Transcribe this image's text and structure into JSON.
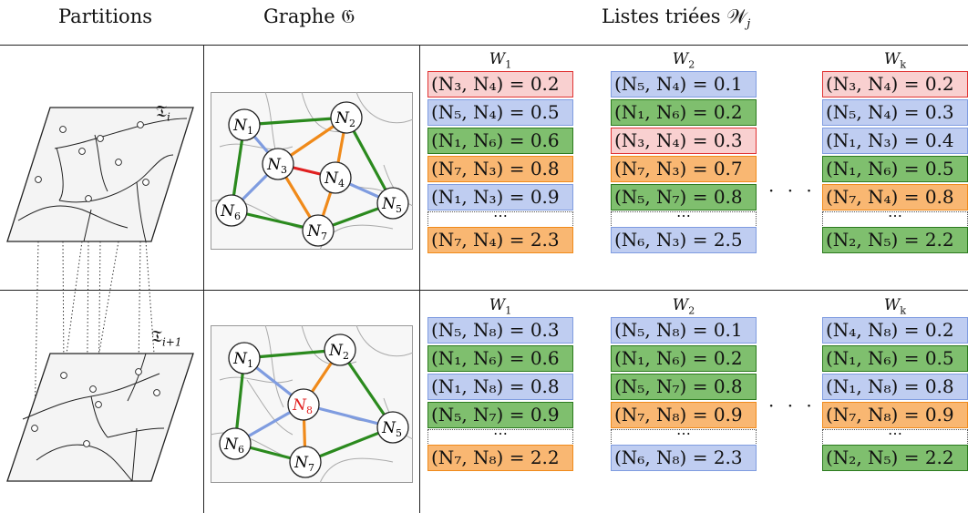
{
  "headers": {
    "partitions": "Partitions",
    "graph": "Graphe 𝔊",
    "lists": "Listes triées 𝒲"
  },
  "partition_labels": {
    "top": "𝔗",
    "bottom": "𝔗"
  },
  "graph_nodes": {
    "top": [
      "N",
      "N",
      "N",
      "N",
      "N",
      "N",
      "N"
    ],
    "bottom": [
      "N",
      "N",
      "N",
      "N",
      "N",
      "N",
      "N"
    ]
  },
  "lists": [
    {
      "header": "W",
      "sub": "1",
      "rows": [
        {
          "label": "(N₃, N₄) = 0.2",
          "color": "red"
        },
        {
          "label": "(N₅, N₄) = 0.5",
          "color": "blue"
        },
        {
          "label": "(N₁, N₆) = 0.6",
          "color": "green"
        },
        {
          "label": "(N₇, N₃) = 0.8",
          "color": "orange"
        },
        {
          "label": "(N₁, N₃) = 0.9",
          "color": "blue"
        }
      ],
      "ellipsis": "⋯",
      "last": {
        "label": "(N₇, N₄) = 2.3",
        "color": "orange"
      }
    },
    {
      "header": "W",
      "sub": "2",
      "rows": [
        {
          "label": "(N₅, N₄) = 0.1",
          "color": "blue"
        },
        {
          "label": "(N₁, N₆) = 0.2",
          "color": "green"
        },
        {
          "label": "(N₃, N₄) = 0.3",
          "color": "red"
        },
        {
          "label": "(N₇, N₃) = 0.7",
          "color": "orange"
        },
        {
          "label": "(N₅, N₇) = 0.8",
          "color": "green"
        }
      ],
      "ellipsis": "⋯",
      "last": {
        "label": "(N₆, N₃) = 2.5",
        "color": "blue"
      }
    },
    {
      "header": "W",
      "sub": "k",
      "rows": [
        {
          "label": "(N₃, N₄) = 0.2",
          "color": "red"
        },
        {
          "label": "(N₅, N₄) = 0.3",
          "color": "blue"
        },
        {
          "label": "(N₁, N₃) = 0.4",
          "color": "blue"
        },
        {
          "label": "(N₁, N₆) = 0.5",
          "color": "green"
        },
        {
          "label": "(N₇, N₄) = 0.8",
          "color": "orange"
        }
      ],
      "ellipsis": "⋯",
      "last": {
        "label": "(N₂, N₅) = 2.2",
        "color": "green"
      }
    },
    {
      "header": "W",
      "sub": "1",
      "rows": [
        {
          "label": "(N₅, N₈) = 0.3",
          "color": "blue"
        },
        {
          "label": "(N₁, N₆) = 0.6",
          "color": "green"
        },
        {
          "label": "(N₁, N₈) = 0.8",
          "color": "blue"
        },
        {
          "label": "(N₅, N₇) = 0.9",
          "color": "green"
        }
      ],
      "ellipsis": "⋯",
      "last": {
        "label": "(N₇, N₈) = 2.2",
        "color": "orange"
      }
    },
    {
      "header": "W",
      "sub": "2",
      "rows": [
        {
          "label": "(N₅, N₈) = 0.1",
          "color": "blue"
        },
        {
          "label": "(N₁, N₆) = 0.2",
          "color": "green"
        },
        {
          "label": "(N₅, N₇) = 0.8",
          "color": "green"
        },
        {
          "label": "(N₇, N₈) = 0.9",
          "color": "orange"
        }
      ],
      "ellipsis": "⋯",
      "last": {
        "label": "(N₆, N₈) = 2.3",
        "color": "blue"
      }
    },
    {
      "header": "W",
      "sub": "k",
      "rows": [
        {
          "label": "(N₄, N₈) = 0.2",
          "color": "blue"
        },
        {
          "label": "(N₁, N₆) = 0.5",
          "color": "green"
        },
        {
          "label": "(N₁, N₈) = 0.8",
          "color": "blue"
        },
        {
          "label": "(N₇, N₈) = 0.9",
          "color": "orange"
        }
      ],
      "ellipsis": "⋯",
      "last": {
        "label": "(N₂, N₅) = 2.2",
        "color": "green"
      }
    }
  ],
  "between_dots": "· · ·",
  "colors": {
    "red": "#e03333",
    "blue": "#7f9ce0",
    "green": "#2b7a1e",
    "orange": "#f08a1a"
  }
}
